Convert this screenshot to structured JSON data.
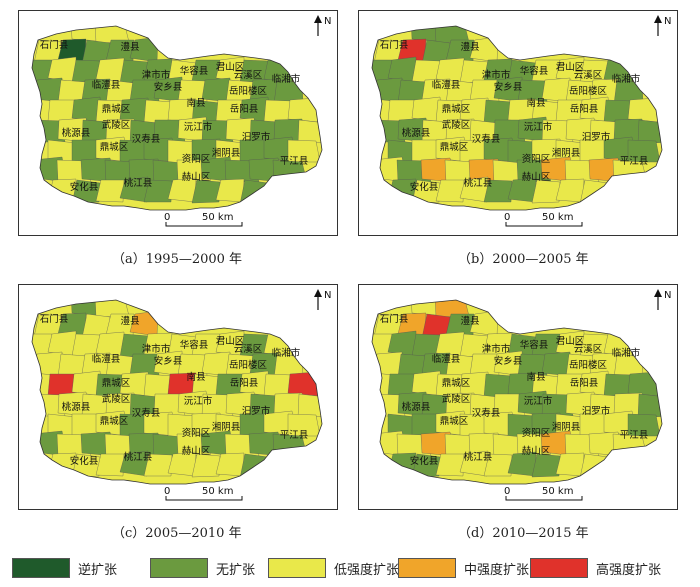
{
  "panels": [
    {
      "caption": "（a）1995—2000 年"
    },
    {
      "caption": "（b）2000—2005 年"
    },
    {
      "caption": "（c）2005—2010 年"
    },
    {
      "caption": "（d）2010—2015 年"
    }
  ],
  "north_label": "N",
  "scale_label": "50 km",
  "zero_label": "0",
  "place_labels": [
    "石门县",
    "澧县",
    "津市市",
    "华容县",
    "君山区",
    "云溪区",
    "临湘市",
    "临澧县",
    "安乡县",
    "岳阳楼区",
    "鼎城区",
    "南县",
    "岳阳县",
    "武陵区",
    "桃源县",
    "汉寿县",
    "沅江市",
    "汨罗市",
    "鼎城区",
    "资阳区",
    "湘阴县",
    "平江县",
    "安化县",
    "桃江县",
    "赫山区"
  ],
  "legend": [
    {
      "label": "逆扩张",
      "color": "#1f5a2b"
    },
    {
      "label": "无扩张",
      "color": "#6b9a3f"
    },
    {
      "label": "低强度扩张",
      "color": "#e9e84a"
    },
    {
      "label": "中强度扩张",
      "color": "#f0a52a"
    },
    {
      "label": "高强度扩张",
      "color": "#e0322b"
    }
  ]
}
